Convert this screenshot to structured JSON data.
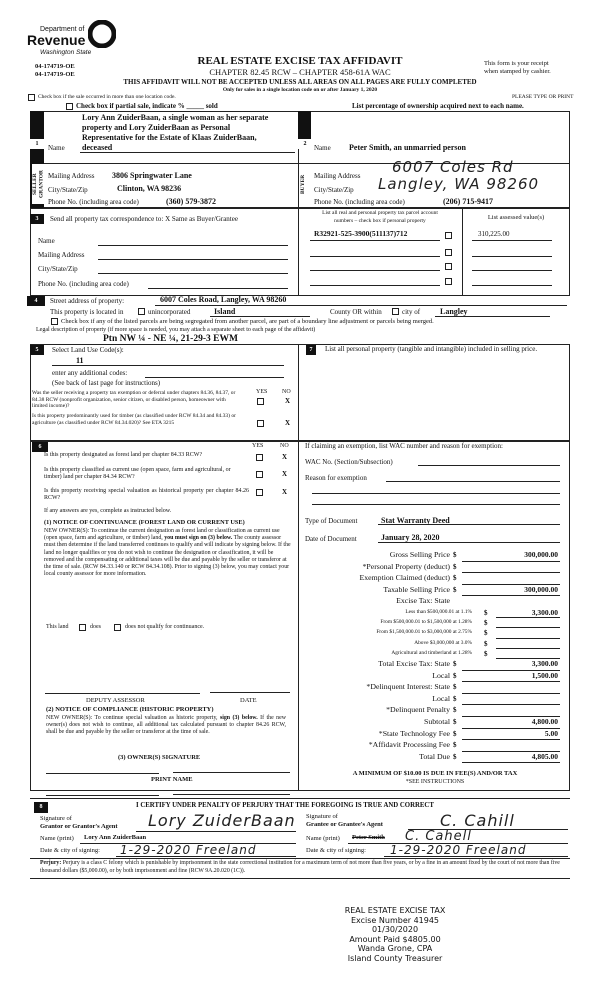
{
  "header": {
    "logo": {
      "line1": "Department of",
      "line2": "Revenue",
      "line3": "Washington State"
    },
    "form_ids": [
      "04-174719-OE",
      "04-174719-OE"
    ],
    "title": "REAL ESTATE EXCISE TAX AFFIDAVIT",
    "chapter": "CHAPTER 82.45 RCW – CHAPTER 458-61A WAC",
    "receipt_note": [
      "This form is your receipt",
      "when stamped by cashier."
    ],
    "warning": "THIS AFFIDAVIT WILL NOT BE ACCEPTED UNLESS ALL AREAS ON ALL PAGES ARE FULLY COMPLETED",
    "only_for": "Only for sales in a single location code on or after January 1, 2020",
    "multi_location": "Check box if the sale occurred in more than one location code.",
    "please_type": "PLEASE TYPE OR PRINT",
    "partial_sale": "Check box if partial sale, indicate % _____ sold",
    "list_percentage": "List percentage of ownership acquired next to each name."
  },
  "seller": {
    "section": "1",
    "side_label": "SELLER GRANTOR",
    "name_label": "Name",
    "name_lines": [
      "Lory Ann ZuiderBaan, a single woman as her separate",
      "property and Lory ZuiderBaan as Personal",
      "Representative for the Estate of Klaas ZuiderBaan,",
      "deceased"
    ],
    "mailing_label": "Mailing Address",
    "mailing": "3806 Springwater Lane",
    "city_label": "City/State/Zip",
    "city": "Clinton, WA 98236",
    "phone_label": "Phone No. (including area code)",
    "phone": "(360) 579-3872"
  },
  "buyer": {
    "section": "2",
    "side_label": "BUYER",
    "name_label": "Name",
    "name": "Peter Smith, an unmarried person",
    "mailing_label": "Mailing Address",
    "mailing": "6007 Coles Rd",
    "city_label": "City/State/Zip",
    "city": "Langley, WA 98260",
    "phone_label": "Phone No. (including area code)",
    "phone": "(206) 715-9417"
  },
  "correspondence": {
    "section": "3",
    "label": "Send all property tax correspondence to: X Same as Buyer/Grantee",
    "fields": [
      "Name",
      "Mailing Address",
      "City/State/Zip",
      "Phone No. (including area code)"
    ]
  },
  "parcels": {
    "header": [
      "List all real and personal property tax parcel account",
      "numbers – check box if personal property"
    ],
    "assessed_header": "List assessed value(s)",
    "items": [
      {
        "number": "R32921-525-3900(511137)712",
        "value": "310,225.00"
      }
    ]
  },
  "property": {
    "section": "4",
    "street_label": "Street address of property:",
    "street": "6007 Coles Road, Langley, WA  98260",
    "located_in": "This property is located in",
    "unincorporated": "unincorporated",
    "county": "Island",
    "county_or": "County OR within",
    "city_of": "city of",
    "city": "Langley",
    "segregated": "Check box if any of the listed parcels are being segregated from another parcel, are part of a boundary line adjustment or parcels being merged.",
    "legal_label": "Legal description of property (if more space is needed, you may attach a separate sheet to each page of the affidavit)",
    "legal": "Ptn NW ¼ - NE ¼, 21-29-3 EWM"
  },
  "land_use": {
    "section": "5",
    "label": "Select Land Use Code(s):",
    "code": "11",
    "additional": "enter any additional codes:",
    "see_back": "(See back of last page for instructions)",
    "yes": "YES",
    "no": "NO",
    "questions": [
      {
        "text": "Was the seller receiving a property tax exemption or deferral under chapters 84.36, 84.37, or 84.38 RCW (nonprofit organization, senior citizen, or disabled person, homeowner with limited income)?",
        "answer": "X"
      },
      {
        "text": "Is this property predominantly used for timber (as classified under RCW 84.34 and 84.33) or agriculture (as classified under RCW 84.34.020)? See ETA 3215",
        "answer": "X"
      }
    ]
  },
  "personal_property": {
    "section": "7",
    "label": "List all personal property (tangible and intangible) included in selling price."
  },
  "designation": {
    "section": "6",
    "yes": "YES",
    "no": "NO",
    "questions": [
      {
        "text": "Is this property designated as forest land per chapter 84.33 RCW?",
        "answer": "X"
      },
      {
        "text": "Is this property classified as current use (open space, farm and agricultural, or timber) land per chapter 84.34 RCW?",
        "answer": "X"
      },
      {
        "text": "Is this property receiving special valuation as historical property per chapter 84.26 RCW?",
        "answer": "X"
      }
    ],
    "if_yes": "If any answers are yes, complete as instructed below.",
    "notice1_title": "(1) NOTICE OF CONTINUANCE (FOREST LAND OR CURRENT USE)",
    "notice1_a": "NEW OWNER(S): To continue the current designation as forest land or classification as current use (open space, farm and agriculture, or timber) land,",
    "notice1_bold": "you must sign on (3) below.",
    "notice1_b": "The county assessor must then determine if the land transferred continues to qualify and will indicate by signing below. If the land no longer qualifies or you do not wish to continue the designation or classification, it will be removed and the compensating or additional taxes will be due and payable by the seller or transferor at the time of sale. (RCW 84.33.140 or RCW 84.34.108). Prior to signing (3) below, you may contact your local county assessor for more information.",
    "this_land": "This land",
    "does": "does",
    "does_not": "does not qualify for continuance.",
    "deputy": "DEPUTY ASSESSOR",
    "date": "DATE",
    "notice2_title": "(2) NOTICE OF COMPLIANCE (HISTORIC PROPERTY)",
    "notice2_a": "NEW OWNER(S): To continue special valuation as historic property,",
    "notice2_bold": "sign (3) below.",
    "notice2_b": "If the new owner(s) does not wish to continue, all additional tax calculated pursuant to chapter 84.26 RCW, shall be due and payable by the seller or transferor at the time of sale.",
    "owner_sig": "(3) OWNER(S) SIGNATURE",
    "print_name": "PRINT NAME"
  },
  "exemption": {
    "label": "If claiming an exemption, list WAC number and reason for exemption:",
    "wac_label": "WAC No. (Section/Subsection)",
    "reason_label": "Reason for exemption",
    "doc_type_label": "Type of Document",
    "doc_type": "Stat Warranty Deed",
    "doc_date_label": "Date of Document",
    "doc_date": "January 28, 2020"
  },
  "calc": {
    "rows": [
      {
        "label": "Gross Selling Price",
        "value": "300,000.00",
        "size": "l"
      },
      {
        "label": "*Personal Property (deduct)",
        "value": "",
        "size": "l"
      },
      {
        "label": "Exemption Claimed (deduct)",
        "value": "",
        "size": "l"
      },
      {
        "label": "Taxable Selling Price",
        "value": "300,000.00",
        "size": "l"
      },
      {
        "label": "Excise Tax:  State",
        "value": null,
        "size": "h"
      },
      {
        "label": "Less than $500,000.01 at 1.1%",
        "value": "3,300.00",
        "size": "s"
      },
      {
        "label": "From $500,000.01 to $1,500,000 at 1.28%",
        "value": "",
        "size": "s"
      },
      {
        "label": "From $1,500,000.01 to $3,000,000 at 2.75%",
        "value": "",
        "size": "s"
      },
      {
        "label": "Above $3,000,000 at 3.0%",
        "value": "",
        "size": "s"
      },
      {
        "label": "Agricultural and timberland at 1.28%",
        "value": "",
        "size": "s"
      },
      {
        "label": "Total Excise Tax: State",
        "value": "3,300.00",
        "size": "l"
      },
      {
        "label": "Local",
        "value": "1,500.00",
        "size": "l"
      },
      {
        "label": "*Delinquent Interest: State",
        "value": "",
        "size": "l"
      },
      {
        "label": "Local",
        "value": "",
        "size": "l"
      },
      {
        "label": "*Delinquent Penalty",
        "value": "",
        "size": "l"
      },
      {
        "label": "Subtotal",
        "value": "4,800.00",
        "size": "l"
      },
      {
        "label": "*State Technology Fee",
        "value": "5.00",
        "size": "l"
      },
      {
        "label": "*Affidavit Processing Fee",
        "value": "",
        "size": "l"
      },
      {
        "label": "Total Due",
        "value": "4,805.00",
        "size": "l"
      }
    ],
    "currency": "$",
    "minimum": "A MINIMUM OF $10.00 IS DUE IN FEE(S) AND/OR TAX",
    "see_instructions": "*SEE INSTRUCTIONS"
  },
  "certify": {
    "section": "8",
    "text": "I CERTIFY UNDER PENALTY OF PERJURY THAT THE FOREGOING IS TRUE AND CORRECT",
    "grantor_sig_label1": "Signature of",
    "grantor_sig_label2": "Grantor or Grantor's Agent",
    "grantor_signature": "Lory ZuiderBaan",
    "grantor_name_label": "Name (print)",
    "grantor_name": "Lory Ann ZuiderBaan",
    "grantor_date_label": "Date & city of signing:",
    "grantor_date": "1-29-2020  Freeland",
    "grantee_sig_label1": "Signature of",
    "grantee_sig_label2": "Grantee or Grantee's Agent",
    "grantee_signature": "C. Cahill",
    "grantee_name_label": "Name (print)",
    "grantee_name_struck": "Peter Smith",
    "grantee_name": "C. Cahell",
    "grantee_date_label": "Date & city of signing:",
    "grantee_date": "1-29-2020  Freeland",
    "perjury_label": "Perjury:",
    "perjury": "Perjury is a class C felony which is punishable by imprisonment in the state correctional institution for a maximum term of not more than five years, or by a fine in an amount fixed by the court of not more than five thousand dollars ($5,000.00), or by both imprisonment and fine (RCW 9A.20.020 (1C))."
  },
  "stamp": [
    "REAL ESTATE EXCISE TAX",
    "Excise Number 41945",
    "01/30/2020",
    "Amount Paid $4805.00",
    "Wanda Grone, CPA",
    "Island County Treasurer"
  ]
}
